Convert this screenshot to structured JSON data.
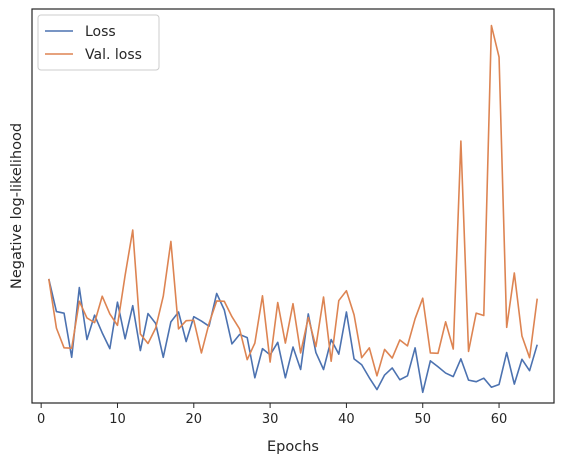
{
  "chart_data": {
    "type": "line",
    "xlabel": "Epochs",
    "ylabel": "Negative log-likelihood",
    "xlim": [
      -1.2,
      67.2
    ],
    "ylim": [
      0.0,
      1.0
    ],
    "xticks": [
      0,
      10,
      20,
      30,
      40,
      50,
      60
    ],
    "grid": false,
    "legend_position": "top-left",
    "series": [
      {
        "name": "Loss",
        "color": "#4c72b0",
        "x": [
          1,
          2,
          3,
          4,
          5,
          6,
          7,
          8,
          9,
          10,
          11,
          12,
          13,
          14,
          15,
          16,
          17,
          18,
          19,
          20,
          21,
          22,
          23,
          24,
          25,
          26,
          27,
          28,
          29,
          30,
          31,
          32,
          33,
          34,
          35,
          36,
          37,
          38,
          39,
          40,
          41,
          42,
          43,
          44,
          45,
          46,
          47,
          48,
          49,
          50,
          51,
          52,
          53,
          54,
          55,
          56,
          57,
          58,
          59,
          60,
          61,
          62,
          63,
          64,
          65
        ],
        "values": [
          0.315,
          0.232,
          0.228,
          0.116,
          0.293,
          0.161,
          0.223,
          0.178,
          0.138,
          0.256,
          0.163,
          0.247,
          0.133,
          0.227,
          0.202,
          0.116,
          0.206,
          0.231,
          0.156,
          0.219,
          0.208,
          0.195,
          0.278,
          0.236,
          0.15,
          0.174,
          0.166,
          0.064,
          0.138,
          0.122,
          0.154,
          0.064,
          0.142,
          0.085,
          0.226,
          0.128,
          0.085,
          0.161,
          0.124,
          0.231,
          0.112,
          0.097,
          0.064,
          0.034,
          0.071,
          0.089,
          0.059,
          0.069,
          0.14,
          0.027,
          0.107,
          0.092,
          0.076,
          0.067,
          0.112,
          0.058,
          0.054,
          0.063,
          0.04,
          0.047,
          0.128,
          0.048,
          0.111,
          0.082,
          0.148
        ]
      },
      {
        "name": "Val. loss",
        "color": "#dd8452",
        "x": [
          1,
          2,
          3,
          4,
          5,
          6,
          7,
          8,
          9,
          10,
          11,
          12,
          13,
          14,
          15,
          16,
          17,
          18,
          19,
          20,
          21,
          22,
          23,
          24,
          25,
          26,
          27,
          28,
          29,
          30,
          31,
          32,
          33,
          34,
          35,
          36,
          37,
          38,
          39,
          40,
          41,
          42,
          43,
          44,
          45,
          46,
          47,
          48,
          49,
          50,
          51,
          52,
          53,
          54,
          55,
          56,
          57,
          58,
          59,
          60,
          61,
          62,
          63,
          64,
          65
        ],
        "values": [
          0.315,
          0.19,
          0.14,
          0.139,
          0.258,
          0.216,
          0.204,
          0.271,
          0.226,
          0.197,
          0.324,
          0.439,
          0.175,
          0.151,
          0.19,
          0.271,
          0.41,
          0.188,
          0.209,
          0.21,
          0.127,
          0.202,
          0.259,
          0.258,
          0.219,
          0.188,
          0.11,
          0.152,
          0.272,
          0.104,
          0.255,
          0.152,
          0.252,
          0.127,
          0.217,
          0.143,
          0.269,
          0.106,
          0.26,
          0.285,
          0.224,
          0.115,
          0.14,
          0.069,
          0.136,
          0.114,
          0.16,
          0.145,
          0.214,
          0.266,
          0.127,
          0.126,
          0.206,
          0.137,
          0.665,
          0.131,
          0.228,
          0.222,
          0.958,
          0.878,
          0.192,
          0.33,
          0.17,
          0.115,
          0.265
        ]
      }
    ]
  }
}
